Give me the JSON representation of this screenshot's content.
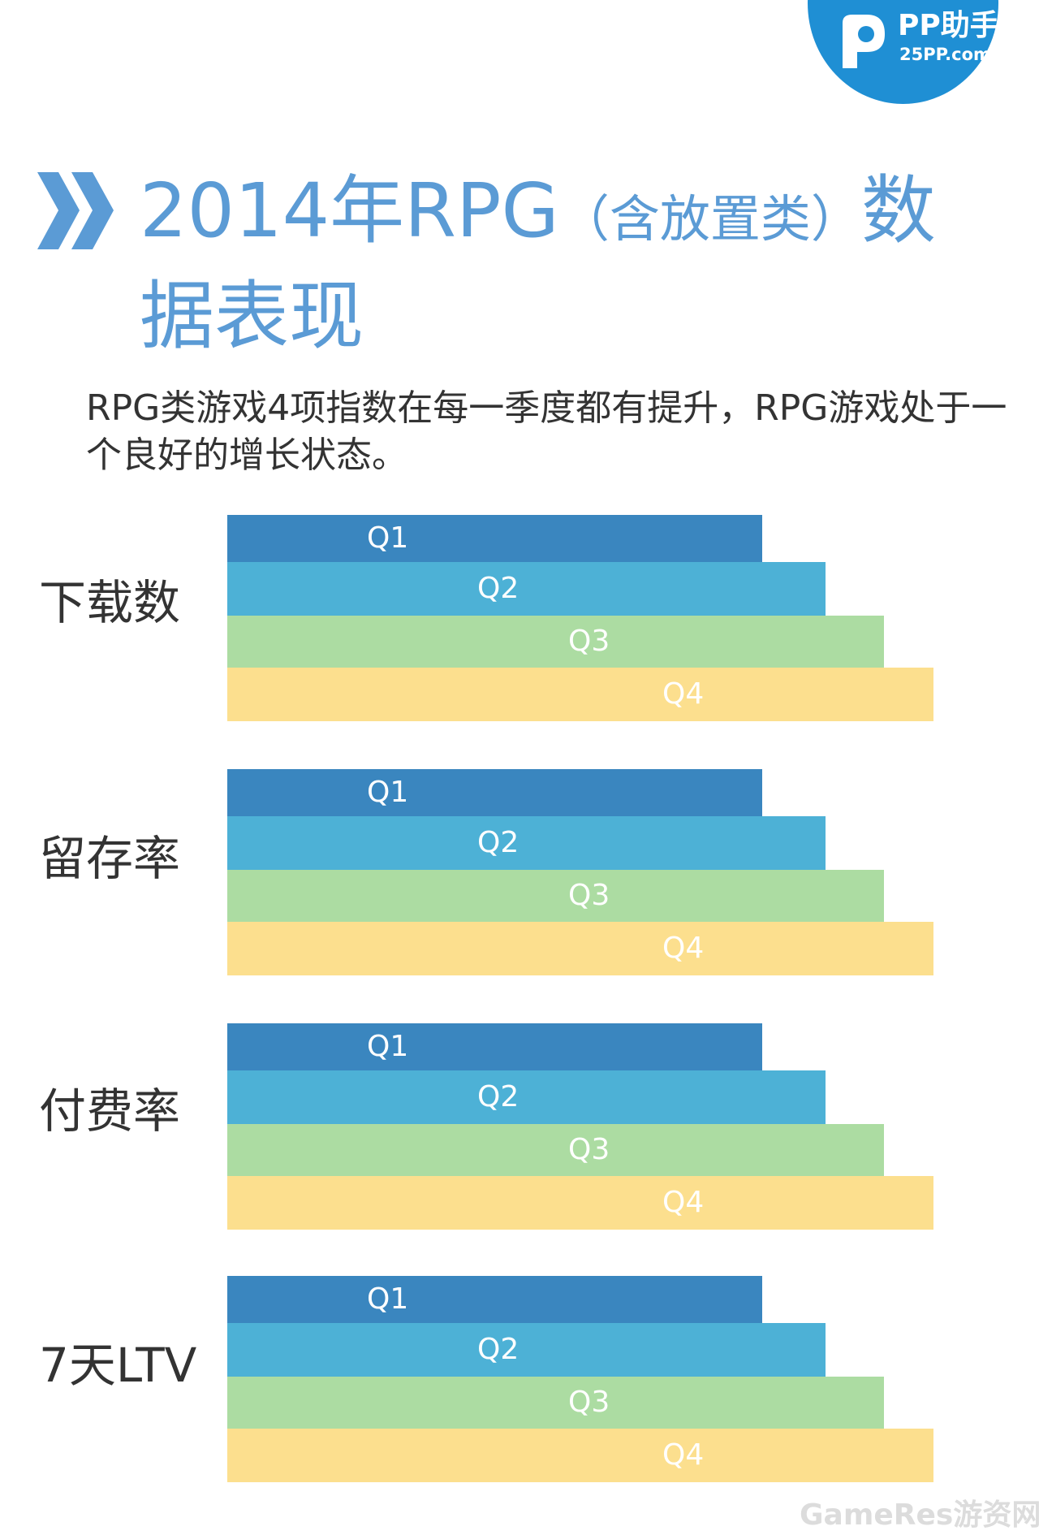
{
  "brand": {
    "name": "PP助手",
    "url": "25PP.com",
    "color": "#1f8fd4"
  },
  "title": {
    "main": "2014年RPG",
    "paren": "（含放置类）",
    "tail": "数据表现",
    "color": "#5b9bd5"
  },
  "subtitle": "RPG类游戏4项指数在每一季度都有提升，RPG游戏处于一个良好的增长状态。",
  "watermark": "GameRes游资网",
  "chart_data": {
    "type": "bar",
    "note_values": "Relative bar lengths (Q4 = 100); no numeric scale is printed",
    "metrics": [
      "下载数",
      "留存率",
      "付费率",
      "7天LTV"
    ],
    "series": [
      {
        "name": "Q1",
        "color": "#3a86bf",
        "values": [
          75.7,
          75.7,
          75.7,
          75.7
        ]
      },
      {
        "name": "Q2",
        "color": "#4db1d6",
        "values": [
          84.7,
          84.7,
          84.7,
          84.7
        ]
      },
      {
        "name": "Q3",
        "color": "#acdca2",
        "values": [
          93.0,
          93.0,
          93.0,
          93.0
        ]
      },
      {
        "name": "Q4",
        "color": "#fcdf8e",
        "values": [
          100,
          100,
          100,
          100
        ]
      }
    ]
  }
}
